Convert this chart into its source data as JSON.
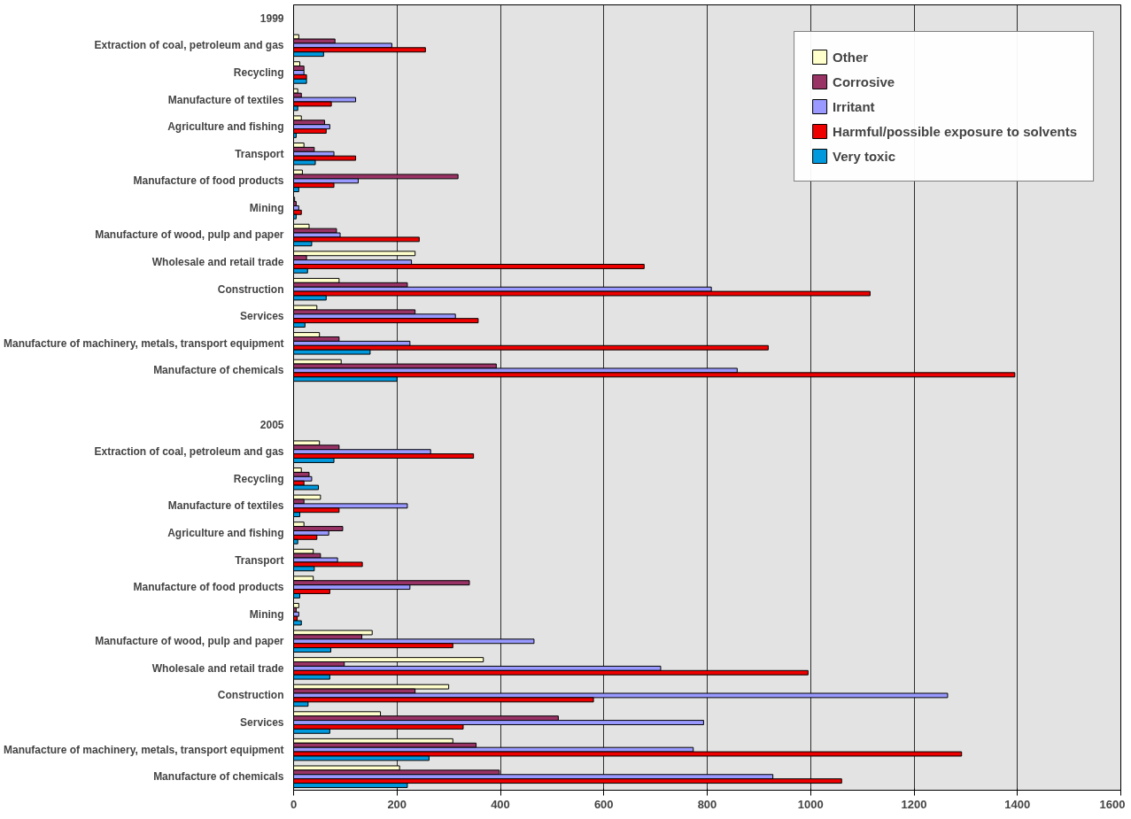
{
  "chart_data": {
    "type": "bar",
    "orientation": "horizontal",
    "categories": [
      "1999",
      "Extraction of coal, petroleum and gas",
      "Recycling",
      "Manufacture of textiles",
      "Agriculture and fishing",
      "Transport",
      "Manufacture of food products",
      "Mining",
      "Manufacture of wood, pulp and paper",
      "Wholesale and retail trade",
      "Construction",
      "Services",
      "Manufacture of machinery, metals, transport equipment",
      "Manufacture of chemicals",
      null,
      "2005",
      "Extraction of coal, petroleum and gas",
      "Recycling",
      "Manufacture of textiles",
      "Agriculture and fishing",
      "Transport",
      "Manufacture of food products",
      "Mining",
      "Manufacture of wood, pulp and paper",
      "Wholesale and retail trade",
      "Construction",
      "Services",
      "Manufacture of machinery, metals, transport equipment",
      "Manufacture of chemicals"
    ],
    "series": [
      {
        "name": "Other",
        "color": "#ffffcc",
        "values": [
          null,
          10,
          12,
          8,
          15,
          20,
          17,
          2,
          30,
          235,
          88,
          45,
          50,
          92,
          null,
          null,
          50,
          15,
          52,
          20,
          38,
          38,
          10,
          152,
          367,
          300,
          168,
          308,
          205
        ]
      },
      {
        "name": "Corrosive",
        "color": "#993366",
        "values": [
          null,
          80,
          20,
          15,
          60,
          40,
          318,
          5,
          83,
          25,
          220,
          235,
          88,
          392,
          null,
          null,
          88,
          30,
          20,
          95,
          52,
          340,
          5,
          132,
          98,
          235,
          512,
          353,
          398
        ]
      },
      {
        "name": "Irritant",
        "color": "#9999ff",
        "values": [
          null,
          190,
          20,
          120,
          70,
          78,
          125,
          10,
          90,
          228,
          808,
          313,
          225,
          858,
          null,
          null,
          265,
          35,
          220,
          68,
          85,
          225,
          10,
          465,
          710,
          1265,
          793,
          773,
          927
        ]
      },
      {
        "name": "Harmful/possible exposure to solvents",
        "color": "#ee0000",
        "values": [
          null,
          255,
          25,
          73,
          63,
          120,
          78,
          15,
          243,
          678,
          1115,
          357,
          918,
          1395,
          null,
          null,
          348,
          20,
          88,
          45,
          133,
          70,
          7,
          308,
          995,
          580,
          328,
          1292,
          1060
        ]
      },
      {
        "name": "Very toxic",
        "color": "#0099dd",
        "values": [
          null,
          58,
          25,
          8,
          5,
          42,
          10,
          5,
          35,
          27,
          63,
          22,
          148,
          200,
          null,
          null,
          78,
          48,
          12,
          8,
          40,
          12,
          15,
          72,
          70,
          28,
          70,
          262,
          220
        ]
      }
    ],
    "xlim": [
      0,
      1600
    ],
    "xticks": [
      0,
      200,
      400,
      600,
      800,
      1000,
      1200,
      1400,
      1600
    ],
    "grid": "x",
    "legend": "top right"
  }
}
